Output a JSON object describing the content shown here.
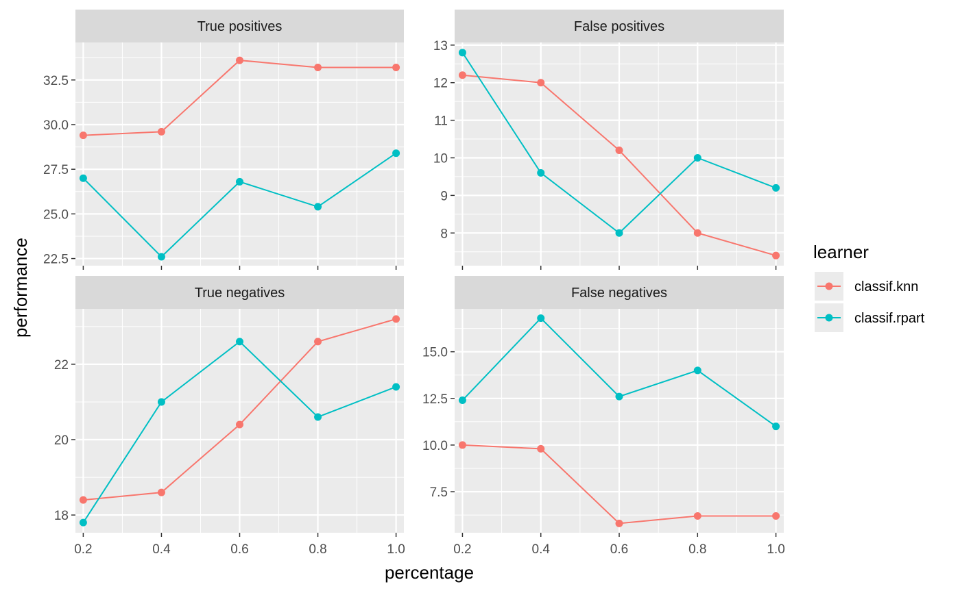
{
  "chart_data": {
    "type": "line",
    "xlabel": "percentage",
    "ylabel": "performance",
    "x": [
      0.2,
      0.4,
      0.6,
      0.8,
      1.0
    ],
    "x_ticks": [
      "0.2",
      "0.4",
      "0.6",
      "0.8",
      "1.0"
    ],
    "xlim": [
      0.18,
      1.02
    ],
    "grid": true,
    "legend": {
      "title": "learner",
      "position": "right",
      "entries": [
        {
          "name": "classif.knn",
          "color": "#F8766D"
        },
        {
          "name": "classif.rpart",
          "color": "#00BFC4"
        }
      ]
    },
    "panels": [
      {
        "title": "True positives",
        "ylim": [
          22.1,
          34.6
        ],
        "y_ticks": [
          22.5,
          25.0,
          27.5,
          30.0,
          32.5
        ],
        "y_tick_labels": [
          "22.5",
          "25.0",
          "27.5",
          "30.0",
          "32.5"
        ],
        "series": [
          {
            "name": "classif.knn",
            "values": [
              29.4,
              29.6,
              33.6,
              33.2,
              33.2
            ]
          },
          {
            "name": "classif.rpart",
            "values": [
              27.0,
              22.6,
              26.8,
              25.4,
              28.4
            ]
          }
        ]
      },
      {
        "title": "False positives",
        "ylim": [
          7.13,
          13.07
        ],
        "y_ticks": [
          8,
          9,
          10,
          11,
          12,
          13
        ],
        "y_tick_labels": [
          "8",
          "9",
          "10",
          "11",
          "12",
          "13"
        ],
        "series": [
          {
            "name": "classif.knn",
            "values": [
              12.2,
              12.0,
              10.2,
              8.0,
              7.4
            ]
          },
          {
            "name": "classif.rpart",
            "values": [
              12.8,
              9.6,
              8.0,
              10.0,
              9.2
            ]
          }
        ]
      },
      {
        "title": "True negatives",
        "ylim": [
          17.53,
          23.47
        ],
        "y_ticks": [
          18,
          20,
          22
        ],
        "y_tick_labels": [
          "18",
          "20",
          "22"
        ],
        "series": [
          {
            "name": "classif.knn",
            "values": [
              18.4,
              18.6,
              20.4,
              22.6,
              23.2
            ]
          },
          {
            "name": "classif.rpart",
            "values": [
              17.8,
              21.0,
              22.6,
              20.6,
              21.4
            ]
          }
        ]
      },
      {
        "title": "False negatives",
        "ylim": [
          5.3,
          17.3
        ],
        "y_ticks": [
          7.5,
          10.0,
          12.5,
          15.0
        ],
        "y_tick_labels": [
          "7.5",
          "10.0",
          "12.5",
          "15.0"
        ],
        "series": [
          {
            "name": "classif.knn",
            "values": [
              10.0,
              9.8,
              5.8,
              6.2,
              6.2
            ]
          },
          {
            "name": "classif.rpart",
            "values": [
              12.4,
              16.8,
              12.6,
              14.0,
              11.0
            ]
          }
        ]
      }
    ]
  }
}
